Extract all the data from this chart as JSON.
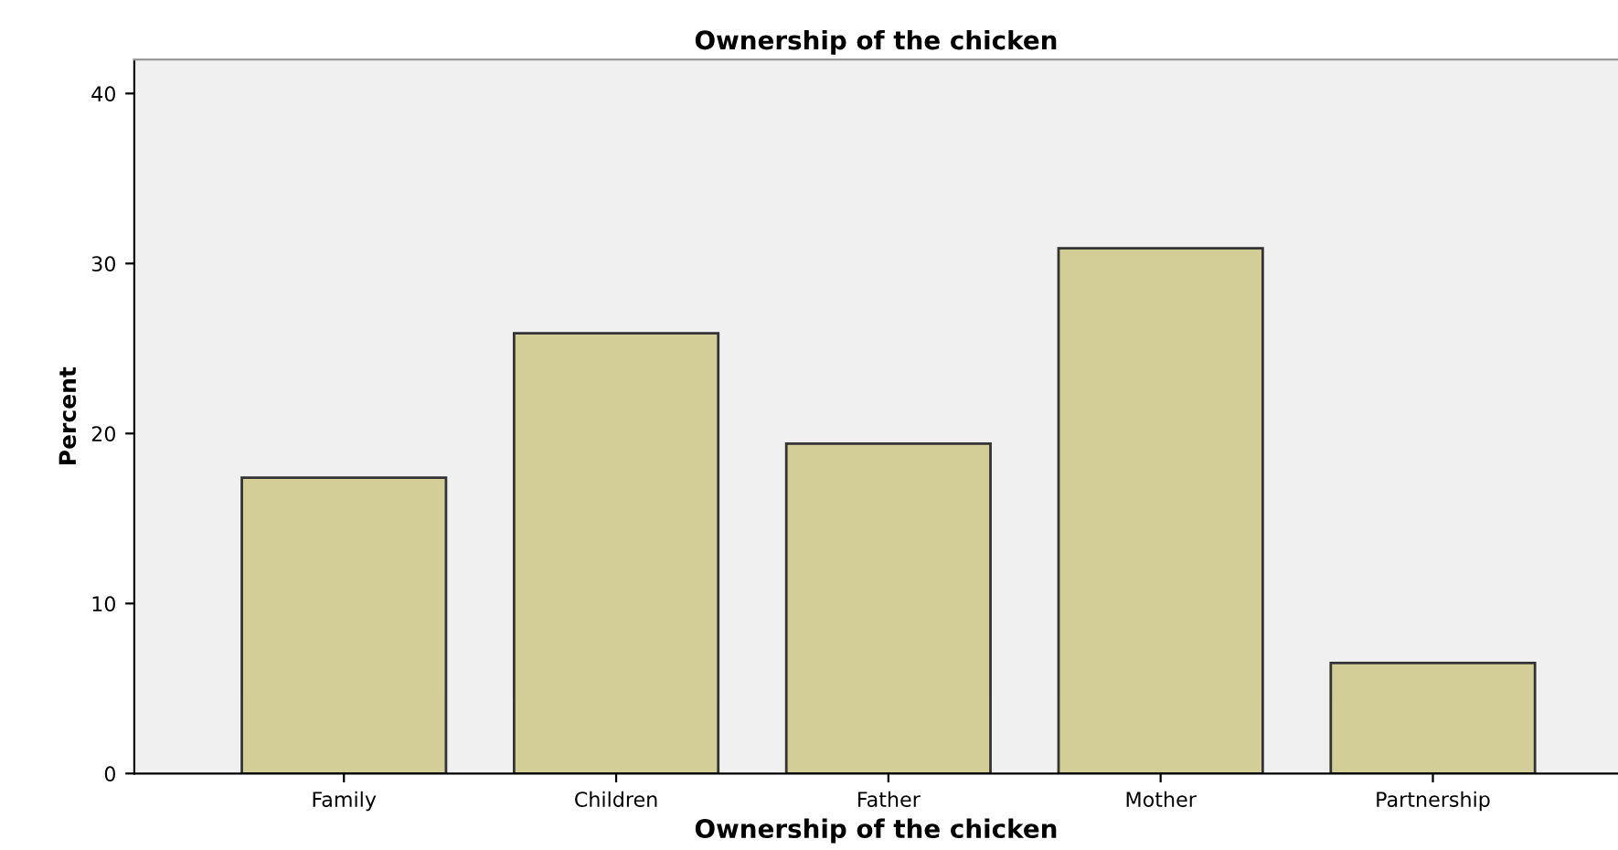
{
  "chart_data": {
    "type": "bar",
    "title": "Ownership of the chicken",
    "xlabel": "Ownership of the chicken",
    "ylabel": "Percent",
    "categories": [
      "Family",
      "Children",
      "Father",
      "Mother",
      "Partnership"
    ],
    "values": [
      17.4,
      25.9,
      19.4,
      30.9,
      6.5
    ],
    "color": "#d3ce97",
    "ylim": [
      0,
      42
    ],
    "yticks": [
      0,
      10,
      20,
      30,
      40
    ],
    "grid": false
  }
}
